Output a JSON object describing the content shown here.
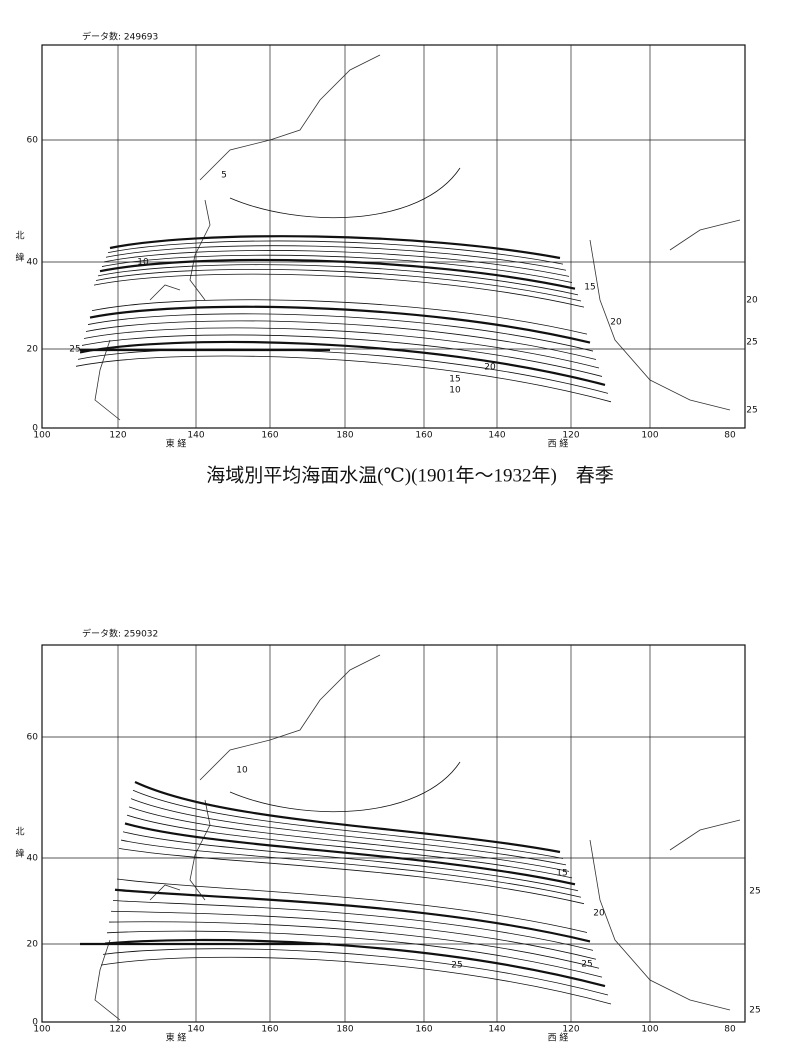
{
  "maps": [
    {
      "data_count": "データ数: 249693",
      "lat_labels": [
        60,
        40,
        20,
        0
      ],
      "lon_labels": [
        100,
        120,
        140,
        160,
        180,
        160,
        140,
        120,
        100,
        80
      ],
      "north_label": [
        "北",
        "緯"
      ],
      "east_label": "東 経",
      "west_label": "西 経",
      "contour_labels": [
        "5",
        "10",
        "15",
        "20",
        "20",
        "20",
        "25",
        "25",
        "25",
        "15",
        "10"
      ]
    },
    {
      "data_count": "データ数: 259032",
      "lat_labels": [
        60,
        40,
        20,
        0
      ],
      "lon_labels": [
        100,
        120,
        140,
        160,
        180,
        160,
        140,
        120,
        100,
        80
      ],
      "north_label": [
        "北",
        "緯"
      ],
      "east_label": "東 経",
      "west_label": "西 経",
      "contour_labels": [
        "10",
        "15",
        "20",
        "25",
        "25",
        "25",
        "25"
      ]
    }
  ],
  "caption": "海域別平均海面水温(℃)(1901年～1932年)　春季"
}
